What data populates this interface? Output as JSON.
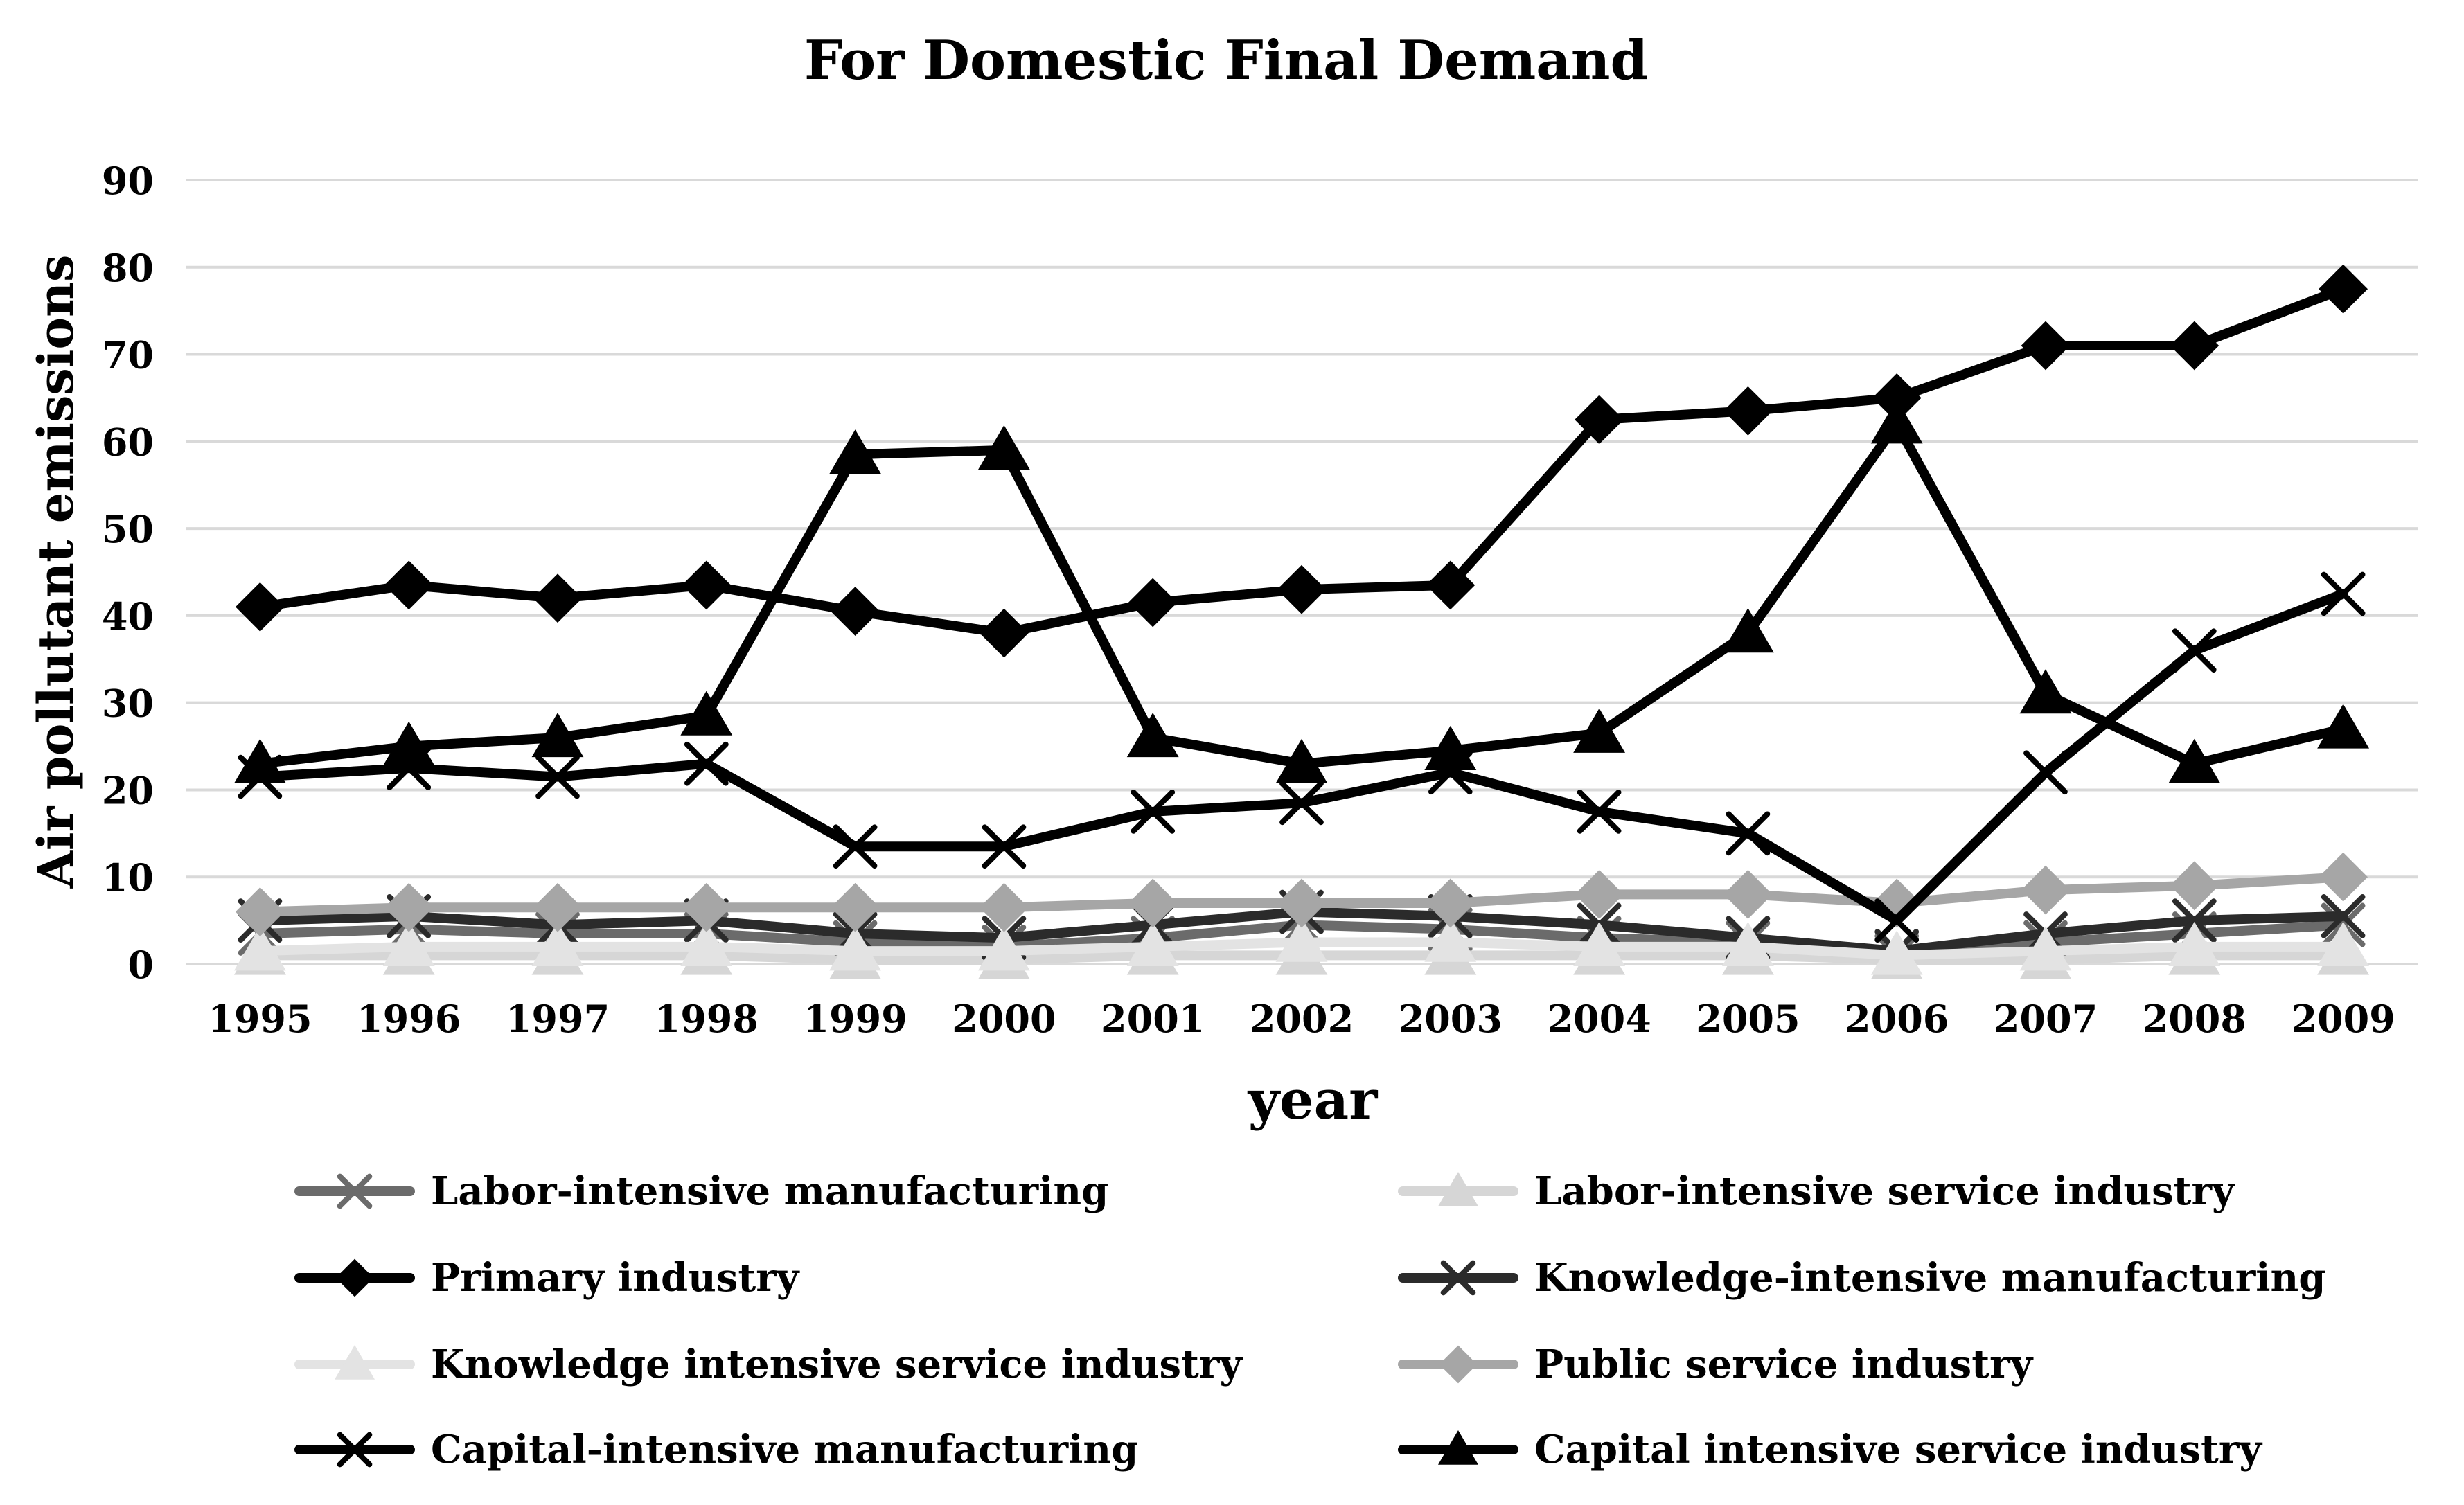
{
  "chart_data": {
    "type": "line",
    "title": "For Domestic Final Demand",
    "xlabel": "year",
    "ylabel": "Air pollutant emissions",
    "ylim": [
      0,
      90
    ],
    "yticks": [
      0,
      10,
      20,
      30,
      40,
      50,
      60,
      70,
      80,
      90
    ],
    "grid": true,
    "legend_position": "bottom",
    "categories": [
      "1995",
      "1996",
      "1997",
      "1998",
      "1999",
      "2000",
      "2001",
      "2002",
      "2003",
      "2004",
      "2005",
      "2006",
      "2007",
      "2008",
      "2009"
    ],
    "series": [
      {
        "name": "Labor-intensive manufacturing",
        "color": "#6b6b6b",
        "marker": "x",
        "values": [
          3.5,
          4,
          3.5,
          3.5,
          2.5,
          2,
          3,
          4.5,
          4,
          3,
          2.5,
          1,
          2.5,
          3.5,
          4.5
        ]
      },
      {
        "name": "Labor-intensive service industry",
        "color": "#d6d6d6",
        "marker": "triangle",
        "values": [
          1,
          1,
          1,
          1,
          0.5,
          0.5,
          1,
          1,
          1,
          1,
          1,
          0.5,
          0.5,
          1,
          1
        ]
      },
      {
        "name": "Primary industry",
        "color": "#000000",
        "marker": "diamond",
        "values": [
          41,
          43.5,
          42,
          43.5,
          40.5,
          38,
          41.5,
          43,
          43.5,
          62.5,
          63.5,
          65,
          71,
          71,
          77.5
        ]
      },
      {
        "name": "Knowledge-intensive manufacturing",
        "color": "#2b2b2b",
        "marker": "x",
        "values": [
          5,
          5.5,
          4.5,
          5,
          3.5,
          3,
          4.5,
          6,
          5.5,
          4.5,
          3,
          1.5,
          3.5,
          5,
          5.5
        ]
      },
      {
        "name": "Knowledge intensive service industry",
        "color": "#e3e3e3",
        "marker": "triangle",
        "values": [
          1.5,
          2,
          2,
          2,
          1.5,
          1.5,
          2,
          2.5,
          2.5,
          2,
          2,
          1,
          1.5,
          2,
          2
        ]
      },
      {
        "name": "Public service industry",
        "color": "#a6a6a6",
        "marker": "diamond",
        "values": [
          6,
          6.5,
          6.5,
          6.5,
          6.5,
          6.5,
          7,
          7,
          7,
          8,
          8,
          7,
          8.5,
          9,
          10
        ]
      },
      {
        "name": "Capital-intensive manufacturing",
        "color": "#000000",
        "marker": "x",
        "values": [
          21.5,
          22.5,
          21.5,
          23,
          13.5,
          13.5,
          17.5,
          18.5,
          22,
          17.5,
          15,
          5,
          22,
          36,
          42.5
        ]
      },
      {
        "name": "Capital intensive service industry",
        "color": "#000000",
        "marker": "triangle",
        "values": [
          23,
          25,
          26,
          28.5,
          58.5,
          59,
          26,
          23,
          24.5,
          26.5,
          38,
          62,
          31,
          23,
          27
        ]
      }
    ]
  }
}
